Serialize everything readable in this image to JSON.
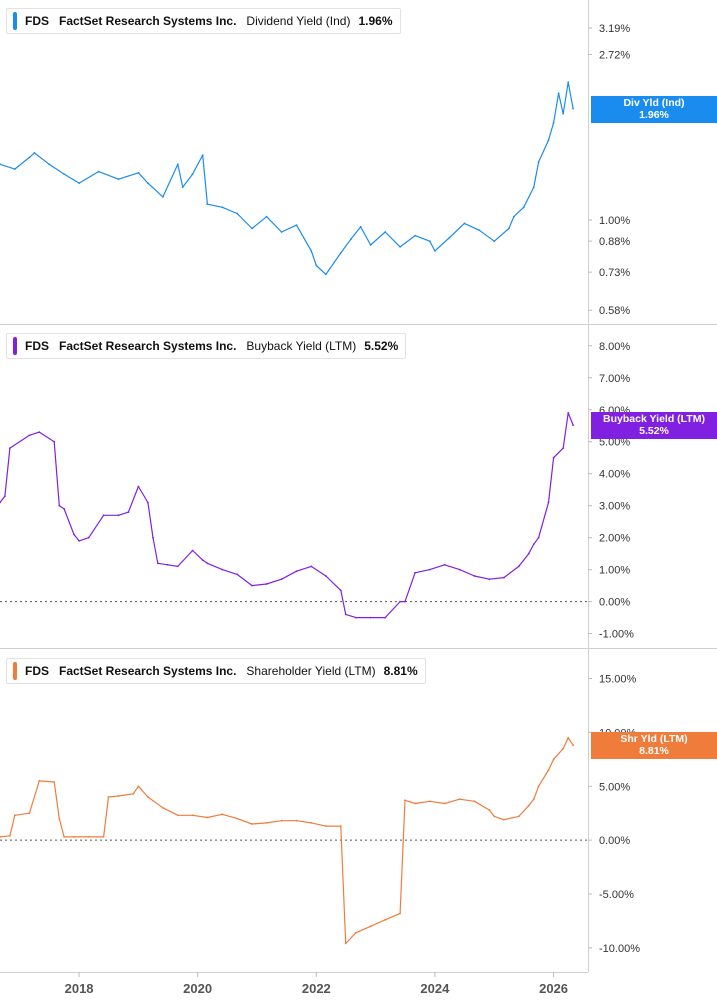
{
  "x_axis": {
    "ticks": [
      "2018",
      "2020",
      "2022",
      "2024",
      "2026"
    ]
  },
  "chart_data": [
    {
      "type": "line",
      "ticker": "FDS",
      "company": "FactSet Research Systems Inc.",
      "metric": "Dividend Yield (Ind)",
      "current_value": "1.96%",
      "tag_label": "Div Yld (Ind)",
      "color": "#1a8cf0",
      "y_scale": "log",
      "ylim": [
        0.56,
        3.6
      ],
      "y_ticks": [
        {
          "value": 3.19,
          "label": "3.19%"
        },
        {
          "value": 2.72,
          "label": "2.72%"
        },
        {
          "value": 1.0,
          "label": "1.00%"
        },
        {
          "value": 0.88,
          "label": "0.88%"
        },
        {
          "value": 0.73,
          "label": "0.73%"
        },
        {
          "value": 0.58,
          "label": "0.58%"
        }
      ],
      "series": [
        {
          "x": [
            "2016-09",
            "2016-12",
            "2017-03",
            "2017-04",
            "2017-07",
            "2017-10",
            "2018-01",
            "2018-05",
            "2018-09",
            "2019-01",
            "2019-03",
            "2019-06",
            "2019-09",
            "2019-10",
            "2019-12",
            "2020-02",
            "2020-03",
            "2020-06",
            "2020-09",
            "2020-12",
            "2021-03",
            "2021-06",
            "2021-09",
            "2021-12",
            "2022-01",
            "2022-03",
            "2022-06",
            "2022-08",
            "2022-10",
            "2022-12",
            "2023-03",
            "2023-06",
            "2023-09",
            "2023-12",
            "2024-01",
            "2024-04",
            "2024-07",
            "2024-10",
            "2025-01",
            "2025-04",
            "2025-05",
            "2025-07",
            "2025-09",
            "2025-10",
            "2025-12",
            "2026-01",
            "2026-02",
            "2026-03",
            "2026-04",
            "2026-05"
          ],
          "y": [
            1.4,
            1.36,
            1.46,
            1.5,
            1.4,
            1.32,
            1.25,
            1.34,
            1.28,
            1.33,
            1.25,
            1.15,
            1.4,
            1.22,
            1.32,
            1.48,
            1.1,
            1.08,
            1.04,
            0.95,
            1.02,
            0.93,
            0.97,
            0.83,
            0.76,
            0.72,
            0.82,
            0.89,
            0.96,
            0.86,
            0.93,
            0.85,
            0.91,
            0.88,
            0.83,
            0.9,
            0.98,
            0.94,
            0.88,
            0.95,
            1.02,
            1.08,
            1.22,
            1.42,
            1.62,
            1.8,
            2.15,
            1.9,
            2.3,
            1.96
          ]
        }
      ]
    },
    {
      "type": "line",
      "ticker": "FDS",
      "company": "FactSet Research Systems Inc.",
      "metric": "Buyback Yield (LTM)",
      "current_value": "5.52%",
      "tag_label": "Buyback Yield (LTM)",
      "color": "#8120e0",
      "y_scale": "linear",
      "ylim": [
        -1.2,
        8.4
      ],
      "y_ticks": [
        {
          "value": 8,
          "label": "8.00%"
        },
        {
          "value": 7,
          "label": "7.00%"
        },
        {
          "value": 6,
          "label": "6.00%"
        },
        {
          "value": 5,
          "label": "5.00%"
        },
        {
          "value": 4,
          "label": "4.00%"
        },
        {
          "value": 3,
          "label": "3.00%"
        },
        {
          "value": 2,
          "label": "2.00%"
        },
        {
          "value": 1,
          "label": "1.00%"
        },
        {
          "value": 0,
          "label": "0.00%"
        },
        {
          "value": -1,
          "label": "-1.00%"
        }
      ],
      "series": [
        {
          "x": [
            "2016-09",
            "2016-10",
            "2016-11",
            "2017-03",
            "2017-05",
            "2017-08",
            "2017-09",
            "2017-10",
            "2017-12",
            "2018-01",
            "2018-03",
            "2018-06",
            "2018-09",
            "2018-11",
            "2019-01",
            "2019-03",
            "2019-04",
            "2019-05",
            "2019-07",
            "2019-09",
            "2019-12",
            "2020-02",
            "2020-03",
            "2020-06",
            "2020-09",
            "2020-12",
            "2021-03",
            "2021-06",
            "2021-09",
            "2021-12",
            "2022-03",
            "2022-06",
            "2022-07",
            "2022-09",
            "2022-12",
            "2023-03",
            "2023-06",
            "2023-07",
            "2023-09",
            "2023-12",
            "2024-03",
            "2024-06",
            "2024-09",
            "2024-12",
            "2025-03",
            "2025-06",
            "2025-08",
            "2025-09",
            "2025-10",
            "2025-12",
            "2026-01",
            "2026-03",
            "2026-04",
            "2026-05"
          ],
          "y": [
            3.1,
            3.3,
            4.8,
            5.2,
            5.3,
            5.0,
            3.0,
            2.9,
            2.1,
            1.9,
            2.0,
            2.7,
            2.7,
            2.8,
            3.6,
            3.1,
            2.0,
            1.2,
            1.15,
            1.1,
            1.6,
            1.3,
            1.2,
            1.0,
            0.85,
            0.5,
            0.55,
            0.7,
            0.95,
            1.1,
            0.8,
            0.35,
            -0.4,
            -0.5,
            -0.5,
            -0.5,
            0.0,
            0.0,
            0.9,
            1.0,
            1.15,
            1.0,
            0.8,
            0.7,
            0.75,
            1.1,
            1.5,
            1.8,
            2.0,
            3.1,
            4.5,
            4.8,
            5.9,
            5.52
          ]
        }
      ]
    },
    {
      "type": "line",
      "ticker": "FDS",
      "company": "FactSet Research Systems Inc.",
      "metric": "Shareholder Yield (LTM)",
      "current_value": "8.81%",
      "tag_label": "Shr Yld (LTM)",
      "color": "#f07c3c",
      "y_scale": "linear",
      "ylim": [
        -11.5,
        17
      ],
      "y_ticks": [
        {
          "value": 15,
          "label": "15.00%"
        },
        {
          "value": 10,
          "label": "10.00%"
        },
        {
          "value": 5,
          "label": "5.00%"
        },
        {
          "value": 0,
          "label": "0.00%"
        },
        {
          "value": -5,
          "label": "-5.00%"
        },
        {
          "value": -10,
          "label": "-10.00%"
        }
      ],
      "series": [
        {
          "x": [
            "2016-09",
            "2016-11",
            "2016-12",
            "2017-03",
            "2017-05",
            "2017-08",
            "2017-09",
            "2017-10",
            "2017-12",
            "2018-03",
            "2018-06",
            "2018-07",
            "2018-09",
            "2018-12",
            "2019-01",
            "2019-03",
            "2019-06",
            "2019-09",
            "2019-12",
            "2020-03",
            "2020-06",
            "2020-09",
            "2020-12",
            "2021-03",
            "2021-06",
            "2021-09",
            "2021-12",
            "2022-03",
            "2022-06",
            "2022-07",
            "2022-09",
            "2022-12",
            "2023-03",
            "2023-06",
            "2023-07",
            "2023-09",
            "2023-12",
            "2024-03",
            "2024-06",
            "2024-09",
            "2024-12",
            "2025-01",
            "2025-03",
            "2025-06",
            "2025-08",
            "2025-09",
            "2025-10",
            "2025-12",
            "2026-01",
            "2026-03",
            "2026-04",
            "2026-05"
          ],
          "y": [
            0.3,
            0.4,
            2.3,
            2.5,
            5.5,
            5.4,
            2.0,
            0.3,
            0.3,
            0.3,
            0.3,
            4.0,
            4.1,
            4.3,
            5.0,
            4.0,
            3.0,
            2.3,
            2.3,
            2.1,
            2.4,
            2.0,
            1.5,
            1.6,
            1.8,
            1.8,
            1.6,
            1.3,
            1.3,
            -9.6,
            -8.6,
            -8.0,
            -7.4,
            -6.8,
            3.7,
            3.4,
            3.6,
            3.4,
            3.8,
            3.6,
            2.8,
            2.2,
            1.9,
            2.2,
            3.2,
            3.8,
            5.0,
            6.5,
            7.5,
            8.5,
            9.5,
            8.81
          ]
        }
      ]
    }
  ]
}
